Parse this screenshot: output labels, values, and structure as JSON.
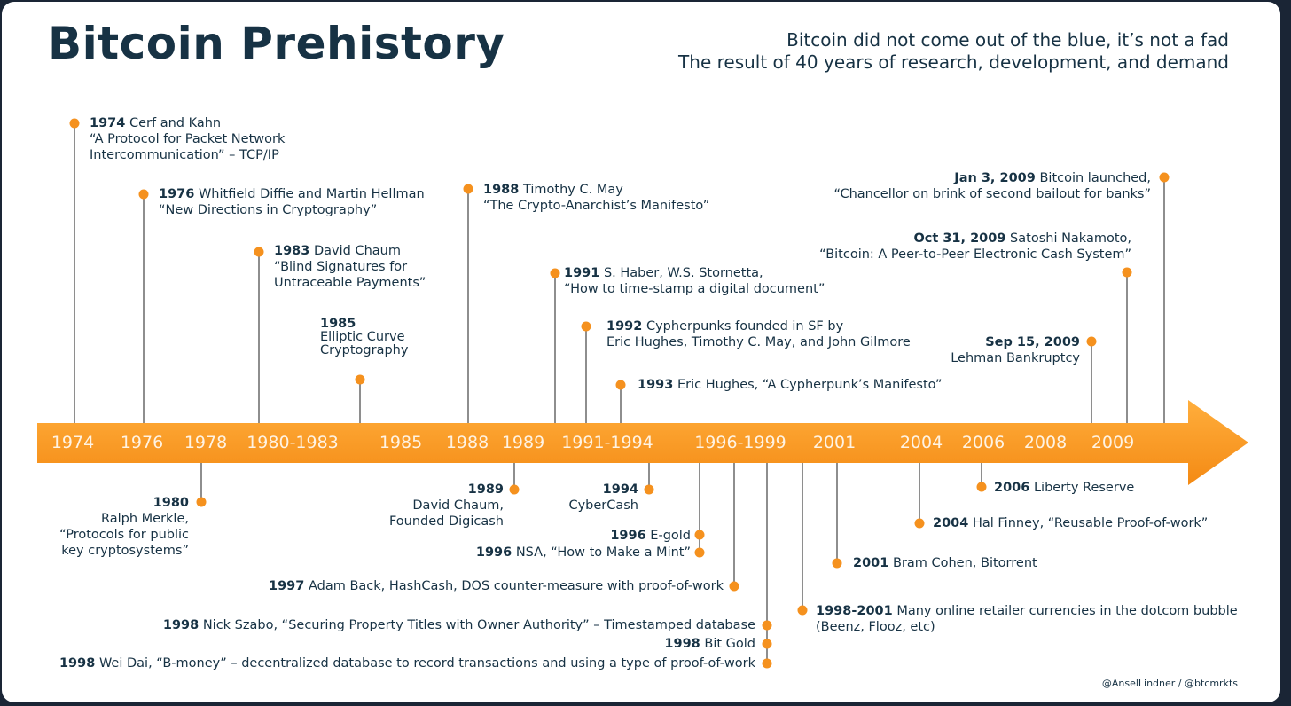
{
  "header": {
    "title": "Bitcoin Prehistory",
    "subtitle_line1": "Bitcoin did not come out of the blue, it’s not a fad",
    "subtitle_line2": "The result of 40 years of research, development, and demand"
  },
  "colors": {
    "accent": "#f5911e",
    "navy": "#173244",
    "line": "#8e8e8e"
  },
  "timeline_labels": [
    "1974",
    "1976",
    "1978",
    "1980-1983",
    "1985",
    "1988",
    "1989",
    "1991-1994",
    "1996-1999",
    "2001",
    "2004",
    "2006",
    "2008",
    "2009"
  ],
  "events": [
    {
      "date": "1974",
      "text": "Cerf and Kahn",
      "detail": [
        "“A Protocol for Packet Network",
        "Intercommunication” – TCP/IP"
      ]
    },
    {
      "date": "1976",
      "text": "Whitfield Diffie and Martin Hellman",
      "detail": [
        "“New Directions in Cryptography”"
      ]
    },
    {
      "date": "1983",
      "text": "David Chaum",
      "detail": [
        "“Blind Signatures for",
        "Untraceable Payments”"
      ]
    },
    {
      "date": "1985",
      "text": "",
      "detail": [
        "Elliptic Curve",
        "Cryptography"
      ]
    },
    {
      "date": "1988",
      "text": "Timothy C. May",
      "detail": [
        "“The Crypto-Anarchist’s Manifesto”"
      ]
    },
    {
      "date": "1991",
      "text": "S. Haber, W.S. Stornetta,",
      "detail": [
        "“How to time-stamp a digital document”"
      ]
    },
    {
      "date": "1992",
      "text": "Cypherpunks founded in SF by",
      "detail": [
        "Eric Hughes, Timothy C. May, and John Gilmore"
      ]
    },
    {
      "date": "1993",
      "text": "Eric Hughes, “A Cypherpunk’s Manifesto”",
      "detail": []
    },
    {
      "date": "Jan 3, 2009",
      "text": "Bitcoin launched,",
      "detail": [
        "“Chancellor on brink of second bailout for banks”"
      ]
    },
    {
      "date": "Oct 31, 2009",
      "text": "Satoshi Nakamoto,",
      "detail": [
        "“Bitcoin: A Peer-to-Peer Electronic Cash System”"
      ]
    },
    {
      "date": "Sep 15, 2009",
      "text": "",
      "detail": [
        "Lehman Bankruptcy"
      ]
    },
    {
      "date": "1980",
      "text": "",
      "detail": [
        "Ralph Merkle,",
        "“Protocols for public",
        "key cryptosystems”"
      ]
    },
    {
      "date": "1989",
      "text": "",
      "detail": [
        "David Chaum,",
        "Founded Digicash"
      ]
    },
    {
      "date": "1994",
      "text": "",
      "detail": [
        "CyberCash"
      ]
    },
    {
      "date": "1996",
      "text": "E-gold",
      "detail": []
    },
    {
      "date": "1996",
      "text": "NSA, “How to Make a Mint”",
      "detail": []
    },
    {
      "date": "1997",
      "text": "Adam Back, HashCash, DOS counter-measure with proof-of-work",
      "detail": []
    },
    {
      "date": "1998",
      "text": "Nick Szabo, “Securing Property Titles with Owner Authority” – Timestamped database",
      "detail": []
    },
    {
      "date": "1998",
      "text": "Bit Gold",
      "detail": []
    },
    {
      "date": "1998",
      "text": "Wei Dai, “B-money” – decentralized database to record transactions and using a type of proof-of-work",
      "detail": []
    },
    {
      "date": "1998-2001",
      "text": "Many online retailer currencies in the dotcom bubble",
      "detail": [
        "(Beenz, Flooz, etc)"
      ]
    },
    {
      "date": "2001",
      "text": "Bram Cohen, Bitorrent",
      "detail": []
    },
    {
      "date": "2004",
      "text": "Hal Finney, “Reusable Proof-of-work”",
      "detail": []
    },
    {
      "date": "2006",
      "text": "Liberty Reserve",
      "detail": []
    }
  ],
  "footer": {
    "credit": "@AnselLindner / @btcmrkts"
  }
}
